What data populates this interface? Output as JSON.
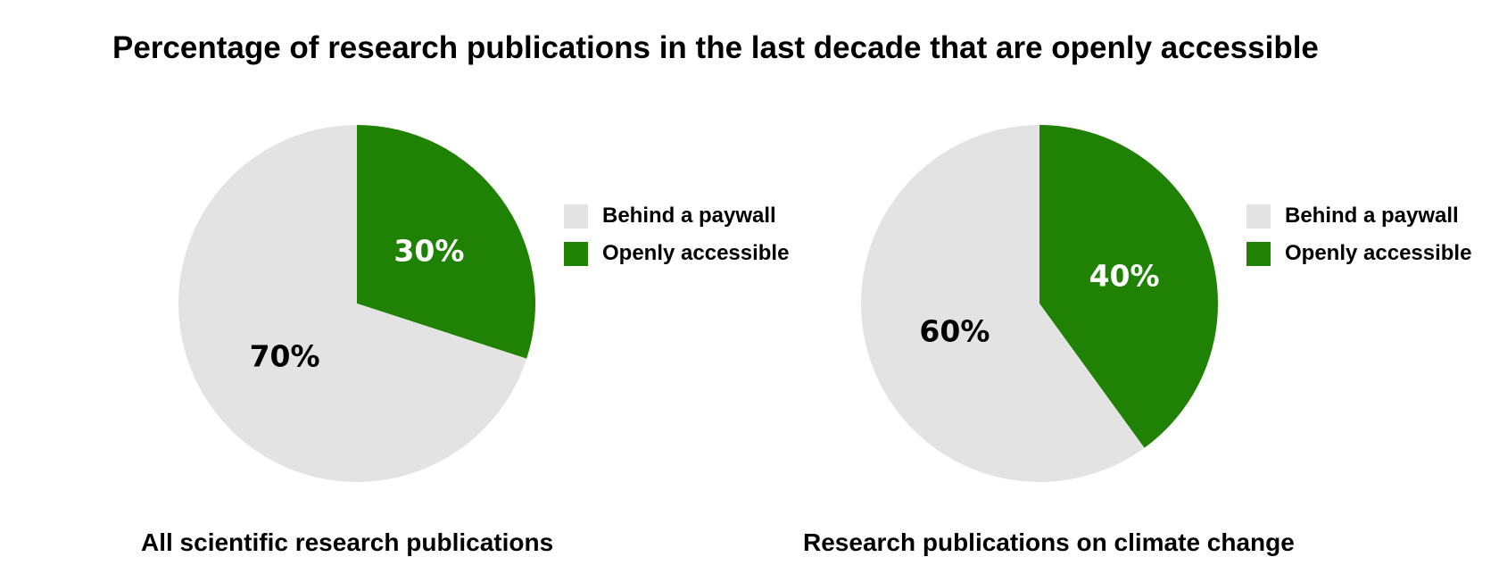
{
  "title": "Percentage of research publications in the last decade that are openly accessible",
  "colors": {
    "paywall": "#e3e3e3",
    "open": "#1f8204"
  },
  "chart_data": [
    {
      "type": "pie",
      "title": "All scientific research publications",
      "legend_position": "right",
      "slices": [
        {
          "label": "Behind a paywall",
          "value": 70,
          "data_label": "70%",
          "color": "#e3e3e3",
          "label_color": "#000000"
        },
        {
          "label": "Openly accessible",
          "value": 30,
          "data_label": "30%",
          "color": "#1f8204",
          "label_color": "#ffffff"
        }
      ]
    },
    {
      "type": "pie",
      "title": "Research publications on climate change",
      "legend_position": "right",
      "slices": [
        {
          "label": "Behind a paywall",
          "value": 60,
          "data_label": "60%",
          "color": "#e3e3e3",
          "label_color": "#000000"
        },
        {
          "label": "Openly accessible",
          "value": 40,
          "data_label": "40%",
          "color": "#1f8204",
          "label_color": "#ffffff"
        }
      ]
    }
  ]
}
